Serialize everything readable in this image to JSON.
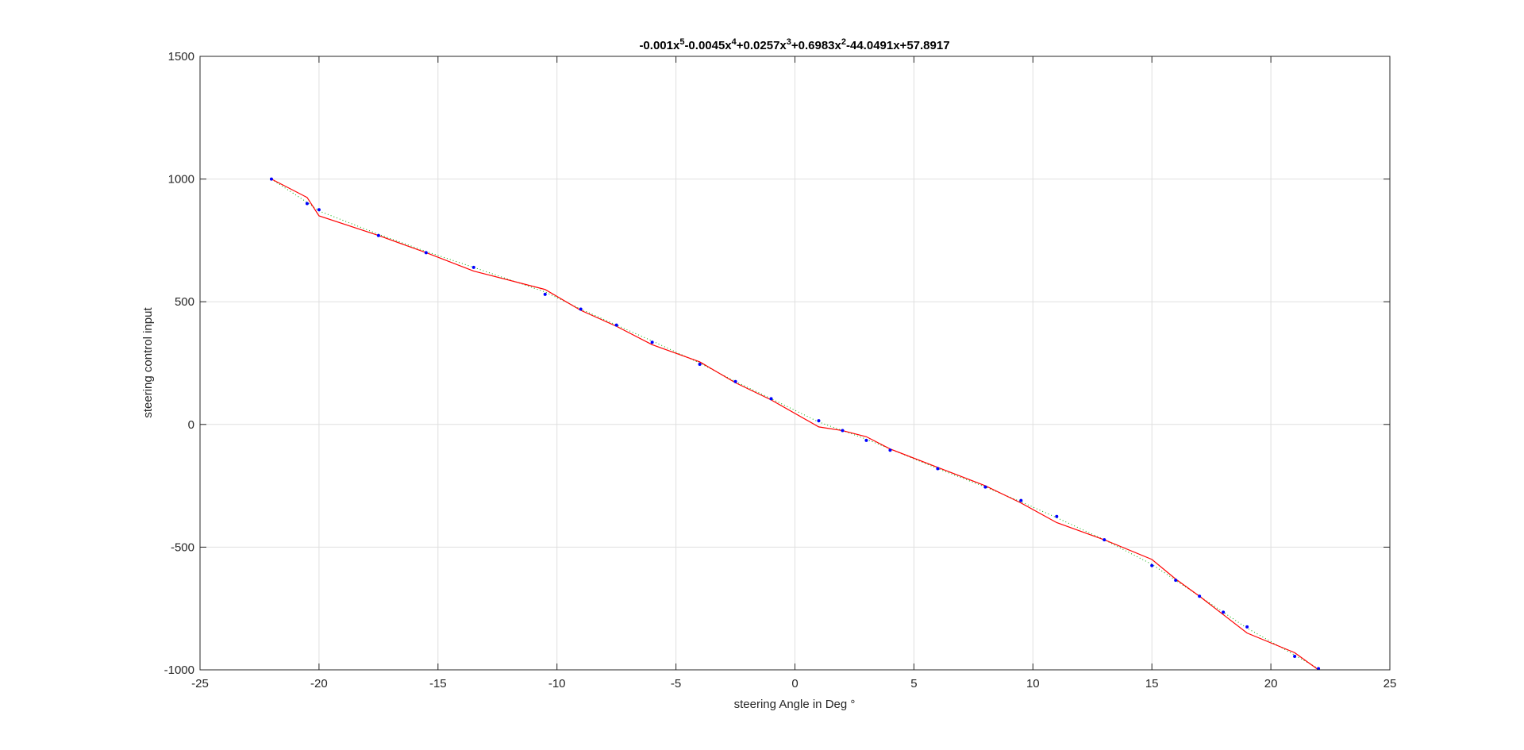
{
  "chart_data": {
    "type": "line",
    "title": "-0.001x^5-0.0045x^4+0.0257x^3+0.6983x^2-44.0491x+57.8917",
    "title_parts": [
      {
        "text": "-0.001x",
        "sup": "5"
      },
      {
        "text": "-0.0045x",
        "sup": "4"
      },
      {
        "text": "+0.0257x",
        "sup": "3"
      },
      {
        "text": "+0.6983x",
        "sup": "2"
      },
      {
        "text": "-44.0491x+57.8917",
        "sup": ""
      }
    ],
    "xlabel": "steering Angle in Deg °",
    "ylabel": "steering control input",
    "xlim": [
      -25,
      25
    ],
    "ylim": [
      -1000,
      1500
    ],
    "xticks": [
      -25,
      -20,
      -15,
      -10,
      -5,
      0,
      5,
      10,
      15,
      20,
      25
    ],
    "yticks": [
      -1000,
      -500,
      0,
      500,
      1000,
      1500
    ],
    "xtick_labels": [
      "-25",
      "-20",
      "-15",
      "-10",
      "-5",
      "0",
      "5",
      "10",
      "15",
      "20",
      "25"
    ],
    "ytick_labels": [
      "-1000",
      "-500",
      "0",
      "500",
      "1000",
      "1500"
    ],
    "grid": true,
    "series": [
      {
        "style": "points",
        "color": "#0000ff",
        "x": [
          -22,
          -20.5,
          -20,
          -17.5,
          -15.5,
          -13.5,
          -10.5,
          -9,
          -7.5,
          -6,
          -4,
          -2.5,
          -1,
          1,
          2,
          3,
          4,
          6,
          8,
          9.5,
          11,
          13,
          15,
          16,
          17,
          18,
          19,
          21,
          22
        ],
        "y": [
          1000,
          900,
          875,
          770,
          700,
          640,
          530,
          470,
          405,
          335,
          245,
          175,
          105,
          15,
          -25,
          -65,
          -105,
          -180,
          -255,
          -310,
          -375,
          -470,
          -575,
          -635,
          -700,
          -765,
          -825,
          -945,
          -995
        ]
      },
      {
        "style": "line",
        "color": "#ff0000",
        "x": [
          -22,
          -20.5,
          -20,
          -17.5,
          -15.5,
          -13.5,
          -10.5,
          -9,
          -7.5,
          -6,
          -4,
          -2.5,
          -1,
          1,
          2,
          3,
          4,
          6,
          8,
          9.5,
          11,
          13,
          15,
          16,
          17,
          18,
          19,
          21,
          22
        ],
        "y": [
          1000,
          925,
          850,
          770,
          700,
          625,
          550,
          465,
          400,
          325,
          255,
          170,
          100,
          -10,
          -25,
          -50,
          -100,
          -175,
          -250,
          -320,
          -400,
          -470,
          -550,
          -630,
          -700,
          -775,
          -850,
          -930,
          -1000
        ]
      },
      {
        "style": "dotted",
        "color": "#00aa00",
        "x": [
          -22,
          -20.5,
          -20,
          -17.5,
          -15.5,
          -13.5,
          -10.5,
          -9,
          -7.5,
          -6,
          -4,
          -2.5,
          -1,
          1,
          2,
          3,
          4,
          6,
          8,
          9.5,
          11,
          13,
          15,
          16,
          17,
          18,
          19,
          21,
          22
        ],
        "y": [
          1000,
          905,
          870,
          775,
          705,
          640,
          540,
          470,
          405,
          340,
          250,
          175,
          105,
          10,
          -25,
          -60,
          -100,
          -180,
          -255,
          -315,
          -380,
          -470,
          -570,
          -635,
          -700,
          -765,
          -830,
          -940,
          -995
        ]
      }
    ]
  }
}
